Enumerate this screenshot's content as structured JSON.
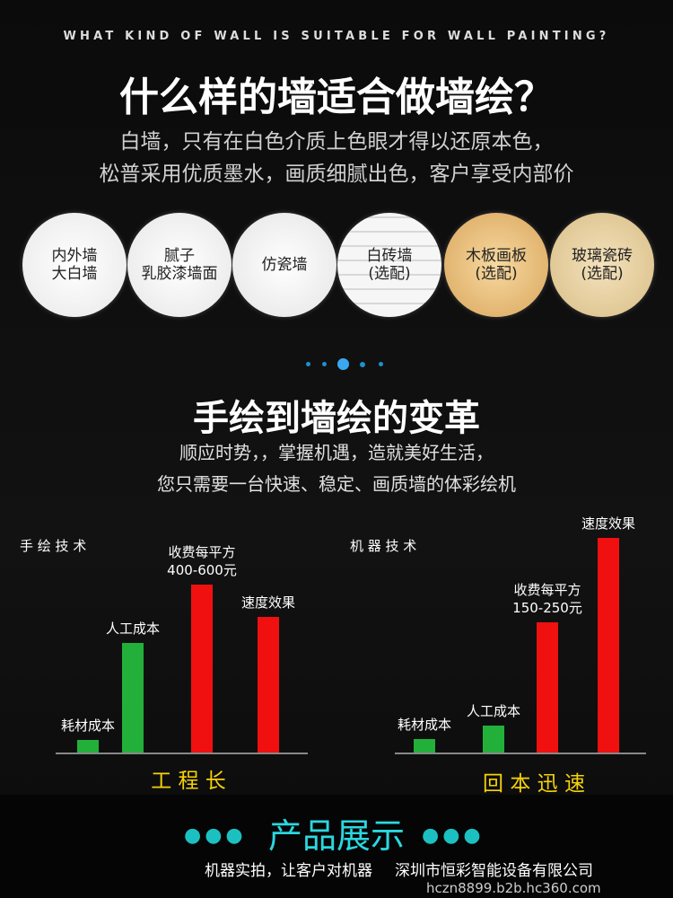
{
  "header": {
    "eyebrow": "WHAT KIND OF WALL IS SUITABLE FOR WALL PAINTING?",
    "title": "什么样的墙适合做墙绘？",
    "lines": [
      "白墙，只有在白色介质上色眼才得以还原本色，",
      "松普采用优质墨水，画质细腻出色，客户享受内部价"
    ]
  },
  "surfaces": [
    "内外墙\n大白墙",
    "腻子\n乳胶漆墙面",
    "仿瓷墙",
    "白砖墙\n(选配)",
    "木板画板\n(选配)",
    "玻璃瓷砖\n(选配)"
  ],
  "section": {
    "title": "手绘到墙绘的变革",
    "lines": [
      "顺应时势，，掌握机遇，造就美好生活，",
      "您只需要一台快速、稳定、画质墙的体彩绘机"
    ]
  },
  "chart_data": [
    {
      "type": "bar",
      "title": "手 绘 技 术",
      "caption": "工 程 长",
      "categories": [
        "耗材成本",
        "人工成本",
        "收费每平方\n400-600元",
        "速度效果"
      ],
      "values": [
        14,
        122,
        187,
        151
      ],
      "colors": [
        "#22b03a",
        "#22b03a",
        "#f01010",
        "#f01010"
      ]
    },
    {
      "type": "bar",
      "title": "机 器 技 术",
      "caption": "回 本 迅 速",
      "categories": [
        "耗材成本",
        "人工成本",
        "收费每平方\n150-250元",
        "速度效果"
      ],
      "values": [
        15,
        30,
        145,
        239
      ],
      "colors": [
        "#22b03a",
        "#22b03a",
        "#f01010",
        "#f01010"
      ]
    }
  ],
  "footer": {
    "title": "产品展示",
    "caption": "机器实拍，让客户对机器",
    "company": "深圳市恒彩智能设备有限公司",
    "url": "hczn8899.b2b.hc360.com"
  }
}
